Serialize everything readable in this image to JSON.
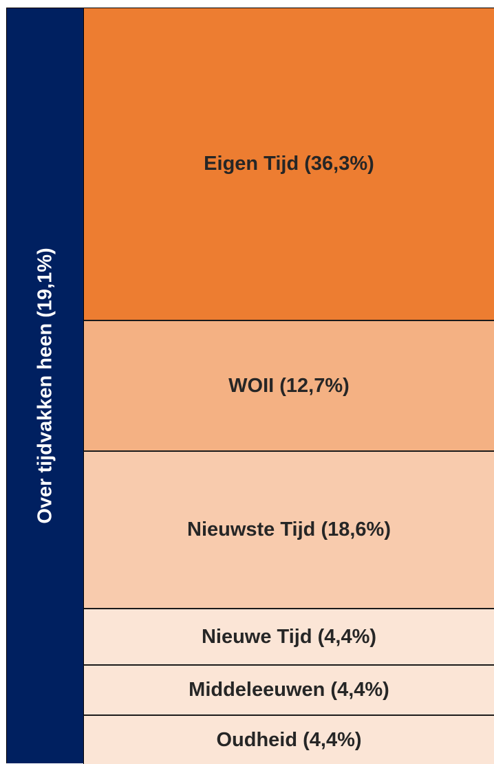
{
  "side_label": "Over tijdvakken heen (19,1%)",
  "blocks": [
    {
      "label": "Eigen Tijd (36,3%)",
      "color": "#ED7D31"
    },
    {
      "label": "WOII (12,7%)",
      "color": "#F4B183"
    },
    {
      "label": "Nieuwste Tijd (18,6%)",
      "color": "#F8CBAD"
    },
    {
      "label": "Nieuwe Tijd (4,4%)",
      "color": "#FBE5D6"
    },
    {
      "label": "Middeleeuwen (4,4%)",
      "color": "#FBE5D6"
    },
    {
      "label": "Oudheid (4,4%)",
      "color": "#FBE5D6"
    }
  ]
}
